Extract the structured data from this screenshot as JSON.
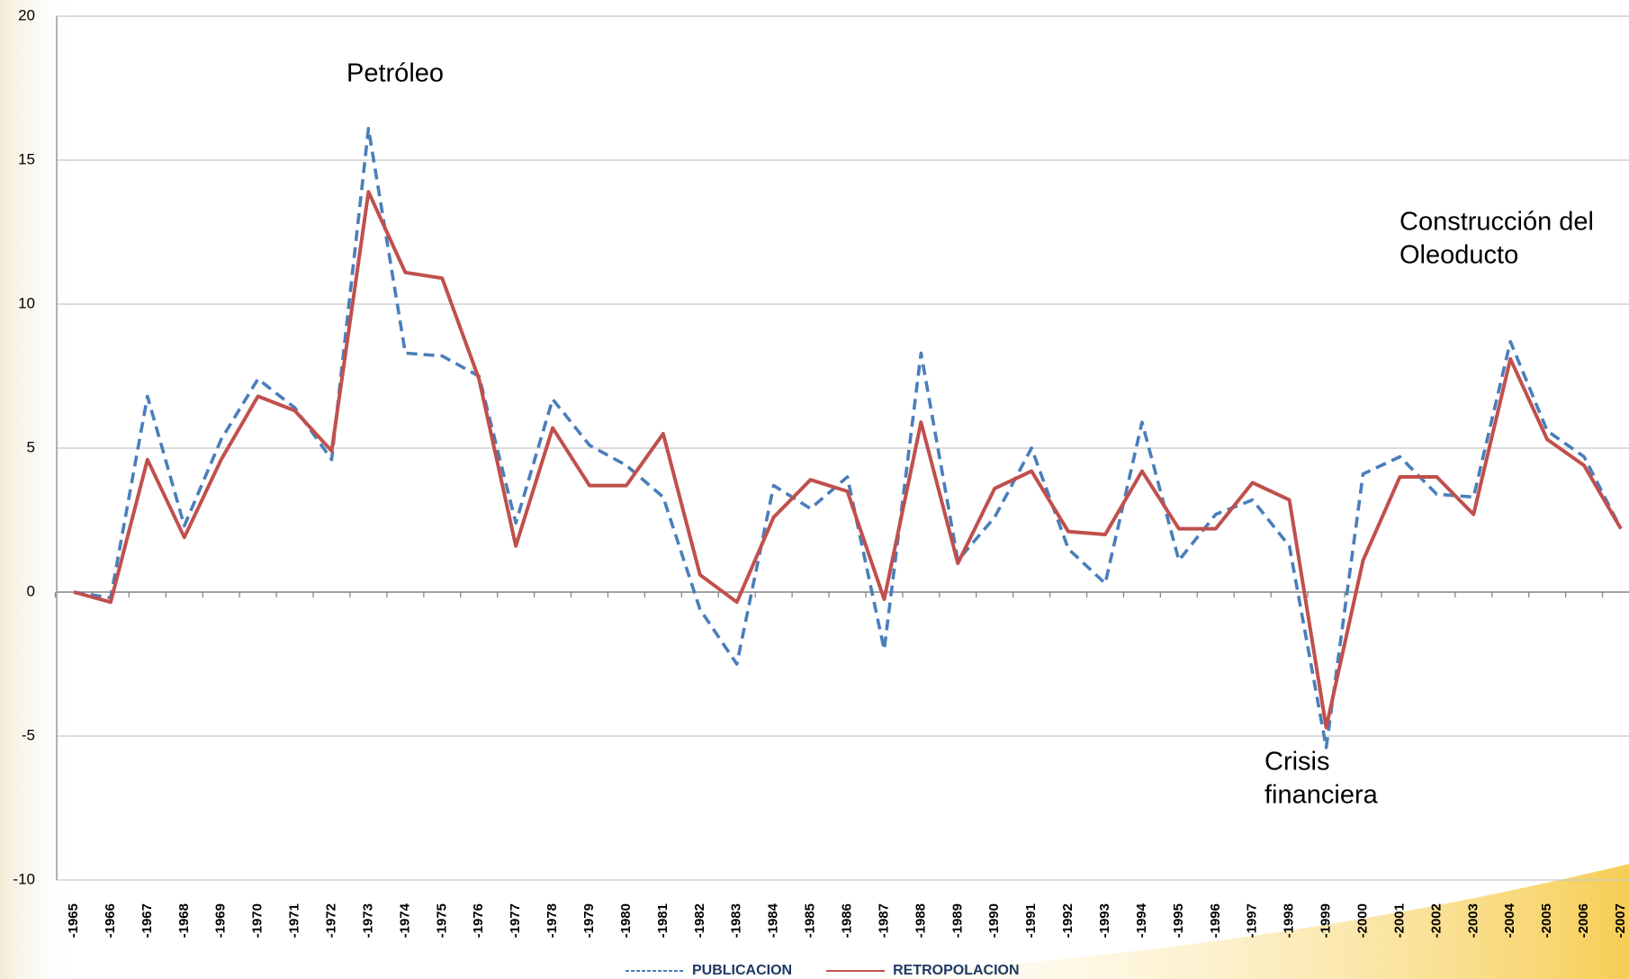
{
  "chart_data": {
    "type": "line",
    "categories": [
      "-1965",
      "-1966",
      "-1967",
      "-1968",
      "-1969",
      "-1970",
      "-1971",
      "-1972",
      "-1973",
      "-1974",
      "-1975",
      "-1976",
      "-1977",
      "-1978",
      "-1979",
      "-1980",
      "-1981",
      "-1982",
      "-1983",
      "-1984",
      "-1985",
      "-1986",
      "-1987",
      "-1988",
      "-1989",
      "-1990",
      "-1991",
      "-1992",
      "-1993",
      "-1994",
      "-1995",
      "-1996",
      "-1997",
      "-1998",
      "-1999",
      "-2000",
      "-2001",
      "-2002",
      "-2003",
      "-2004",
      "-2005",
      "-2006",
      "-2007"
    ],
    "series": [
      {
        "name": "PUBLICACION",
        "color": "#4a7ebb",
        "dashed": true,
        "values": [
          0,
          -0.2,
          6.8,
          2.3,
          5.3,
          7.4,
          6.4,
          4.6,
          16.1,
          8.3,
          8.2,
          7.5,
          2.4,
          6.7,
          5.1,
          4.4,
          3.3,
          -0.6,
          -2.5,
          3.7,
          2.9,
          4.0,
          -2.0,
          8.3,
          1.1,
          2.6,
          5.0,
          1.5,
          0.3,
          5.9,
          1.1,
          2.7,
          3.2,
          1.6,
          -5.4,
          4.1,
          4.7,
          3.4,
          3.3,
          8.7,
          5.6,
          4.7,
          2.2
        ]
      },
      {
        "name": "RETROPOLACION",
        "color": "#c0504d",
        "dashed": false,
        "values": [
          0,
          -0.35,
          4.6,
          1.9,
          4.6,
          6.8,
          6.3,
          4.9,
          13.9,
          11.1,
          10.9,
          7.4,
          1.6,
          5.7,
          3.7,
          3.7,
          5.5,
          0.6,
          -0.35,
          2.6,
          3.9,
          3.5,
          -0.25,
          5.9,
          1.0,
          3.6,
          4.2,
          2.1,
          2.0,
          4.2,
          2.2,
          2.2,
          3.8,
          3.2,
          -4.7,
          1.1,
          4.0,
          4.0,
          2.7,
          8.1,
          5.3,
          4.4,
          2.2
        ]
      }
    ],
    "annotations": [
      [
        "Petróleo"
      ],
      [
        "Construcción del",
        "Oleoducto"
      ],
      [
        "Crisis",
        "financiera"
      ]
    ],
    "ylim": [
      -10,
      20
    ],
    "yticks": [
      -10,
      -5,
      0,
      5,
      10,
      15,
      20
    ],
    "grid": true
  }
}
